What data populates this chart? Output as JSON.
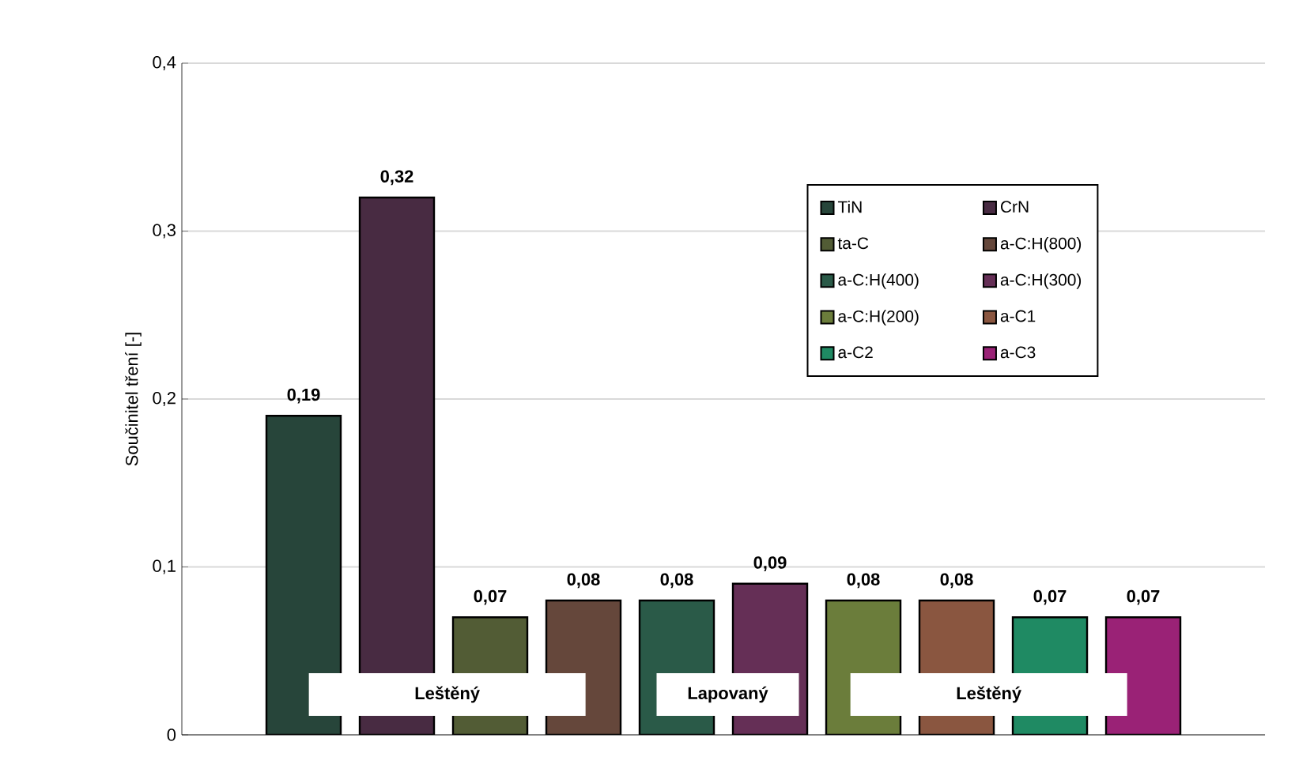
{
  "chart_data": {
    "type": "bar",
    "ylabel": "Součinitel tření [-]",
    "categories": [
      null
    ],
    "series": [
      {
        "name": "TiN",
        "color": "#27453a",
        "values": [
          0.19
        ],
        "value_labels": [
          "0,19"
        ]
      },
      {
        "name": "CrN",
        "color": "#482b42",
        "values": [
          0.32
        ],
        "value_labels": [
          "0,32"
        ]
      },
      {
        "name": "ta-C",
        "color": "#525c35",
        "values": [
          0.07
        ],
        "value_labels": [
          "0,07"
        ]
      },
      {
        "name": "a-C:H(800)",
        "color": "#65473b",
        "values": [
          0.08
        ],
        "value_labels": [
          "0,08"
        ]
      },
      {
        "name": "a-C:H(400)",
        "color": "#2a5a48",
        "values": [
          0.08
        ],
        "value_labels": [
          "0,08"
        ]
      },
      {
        "name": "a-C:H(300)",
        "color": "#652f56",
        "values": [
          0.09
        ],
        "value_labels": [
          "0,09"
        ]
      },
      {
        "name": "a-C:H(200)",
        "color": "#6b7d3b",
        "values": [
          0.08
        ],
        "value_labels": [
          "0,08"
        ]
      },
      {
        "name": "a-C1",
        "color": "#8a5640",
        "values": [
          0.08
        ],
        "value_labels": [
          "0,08"
        ]
      },
      {
        "name": "a-C2",
        "color": "#1f8a63",
        "values": [
          0.07
        ],
        "value_labels": [
          "0,07"
        ]
      },
      {
        "name": "a-C3",
        "color": "#9a2276",
        "values": [
          0.07
        ],
        "value_labels": [
          "0,07"
        ]
      }
    ],
    "ylim": [
      0,
      0.4
    ],
    "yticks": [
      0,
      {
        "value": 0.1,
        "label": "0,1"
      },
      {
        "value": 0.2,
        "label": "0,2"
      },
      {
        "value": 0.3,
        "label": "0,3"
      },
      {
        "value": 0.4,
        "label": "0,4"
      }
    ],
    "grid": "y",
    "legend": "top right",
    "annotations": [
      "Leštěný",
      "Lapovaný",
      "Leštěný"
    ]
  }
}
